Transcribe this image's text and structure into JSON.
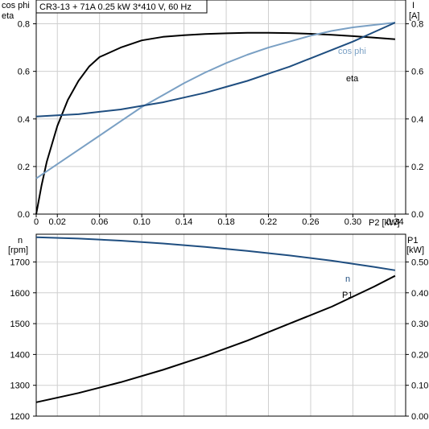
{
  "header": {
    "title": "CR3-13 + 71A   0.25 kW   3*410 V, 60 Hz"
  },
  "colors": {
    "eta": "#000000",
    "cosphi": "#7aa0c4",
    "current": "#1f4e80",
    "speed": "#1f4e80",
    "power": "#000000",
    "grid": "#cfcfcf"
  },
  "chart_data": [
    {
      "type": "line",
      "left_axis_label": [
        "cos phi",
        "eta"
      ],
      "right_axis_label": [
        "I",
        "[A]"
      ],
      "xlabel": "P2 [kW]",
      "x_ticks": [
        "0",
        "0.02",
        "0.06",
        "0.10",
        "0.14",
        "0.18",
        "0.22",
        "0.26",
        "0.30",
        "0.34"
      ],
      "y_ticks": [
        "0.0",
        "0.2",
        "0.4",
        "0.6",
        "0.8"
      ],
      "right_ticks": [
        "0.0",
        "0.2",
        "0.4",
        "0.6",
        "0.8"
      ],
      "xlim": [
        0,
        0.35
      ],
      "ylim": [
        0,
        0.9
      ],
      "grid": true,
      "series": [
        {
          "name": "eta",
          "axis": "left",
          "color": "#000000",
          "x": [
            0,
            0.005,
            0.01,
            0.02,
            0.03,
            0.04,
            0.05,
            0.06,
            0.08,
            0.1,
            0.12,
            0.14,
            0.16,
            0.18,
            0.2,
            0.22,
            0.24,
            0.26,
            0.28,
            0.3,
            0.32,
            0.34
          ],
          "y": [
            0.0,
            0.12,
            0.22,
            0.37,
            0.48,
            0.56,
            0.62,
            0.66,
            0.7,
            0.73,
            0.745,
            0.752,
            0.757,
            0.76,
            0.762,
            0.762,
            0.761,
            0.758,
            0.754,
            0.748,
            0.742,
            0.735
          ]
        },
        {
          "name": "cos phi",
          "axis": "left",
          "color": "#7aa0c4",
          "x": [
            0,
            0.02,
            0.04,
            0.06,
            0.08,
            0.1,
            0.12,
            0.14,
            0.16,
            0.18,
            0.2,
            0.22,
            0.24,
            0.26,
            0.28,
            0.3,
            0.32,
            0.34
          ],
          "y": [
            0.15,
            0.21,
            0.27,
            0.33,
            0.39,
            0.45,
            0.5,
            0.55,
            0.595,
            0.635,
            0.67,
            0.7,
            0.725,
            0.75,
            0.77,
            0.785,
            0.795,
            0.805
          ]
        },
        {
          "name": "I",
          "axis": "right",
          "color": "#1f4e80",
          "x": [
            0,
            0.02,
            0.04,
            0.06,
            0.08,
            0.1,
            0.12,
            0.14,
            0.16,
            0.18,
            0.2,
            0.22,
            0.24,
            0.26,
            0.28,
            0.3,
            0.32,
            0.34
          ],
          "y": [
            0.41,
            0.415,
            0.42,
            0.43,
            0.44,
            0.455,
            0.47,
            0.49,
            0.51,
            0.535,
            0.56,
            0.59,
            0.62,
            0.655,
            0.69,
            0.725,
            0.765,
            0.805
          ]
        }
      ],
      "annotations": {
        "cosphi_label": "cos phi",
        "eta_label": "eta"
      }
    },
    {
      "type": "line",
      "left_axis_label": [
        "n",
        "[rpm]"
      ],
      "right_axis_label": [
        "P1",
        "[kW]"
      ],
      "x_ticks": [
        "0",
        "0.02",
        "0.06",
        "0.10",
        "0.14",
        "0.18",
        "0.22",
        "0.26",
        "0.30",
        "0.34"
      ],
      "y_ticks": [
        "1200",
        "1300",
        "1400",
        "1500",
        "1600",
        "1700"
      ],
      "right_ticks": [
        "0.00",
        "0.10",
        "0.20",
        "0.30",
        "0.40",
        "0.50"
      ],
      "xlim": [
        0,
        0.35
      ],
      "ylim": [
        1200,
        1790
      ],
      "right_ylim": [
        0,
        0.59
      ],
      "grid": true,
      "series": [
        {
          "name": "n",
          "axis": "left",
          "color": "#1f4e80",
          "x": [
            0,
            0.04,
            0.08,
            0.12,
            0.16,
            0.2,
            0.24,
            0.28,
            0.32,
            0.34
          ],
          "y": [
            1780,
            1776,
            1769,
            1760,
            1749,
            1736,
            1721,
            1704,
            1684,
            1673
          ]
        },
        {
          "name": "P1",
          "axis": "right",
          "color": "#000000",
          "x": [
            0,
            0.04,
            0.08,
            0.12,
            0.16,
            0.2,
            0.24,
            0.28,
            0.32,
            0.34
          ],
          "y": [
            0.045,
            0.075,
            0.11,
            0.15,
            0.195,
            0.245,
            0.3,
            0.355,
            0.42,
            0.455
          ]
        }
      ],
      "annotations": {
        "n_label": "n",
        "p1_label": "P1"
      }
    }
  ]
}
